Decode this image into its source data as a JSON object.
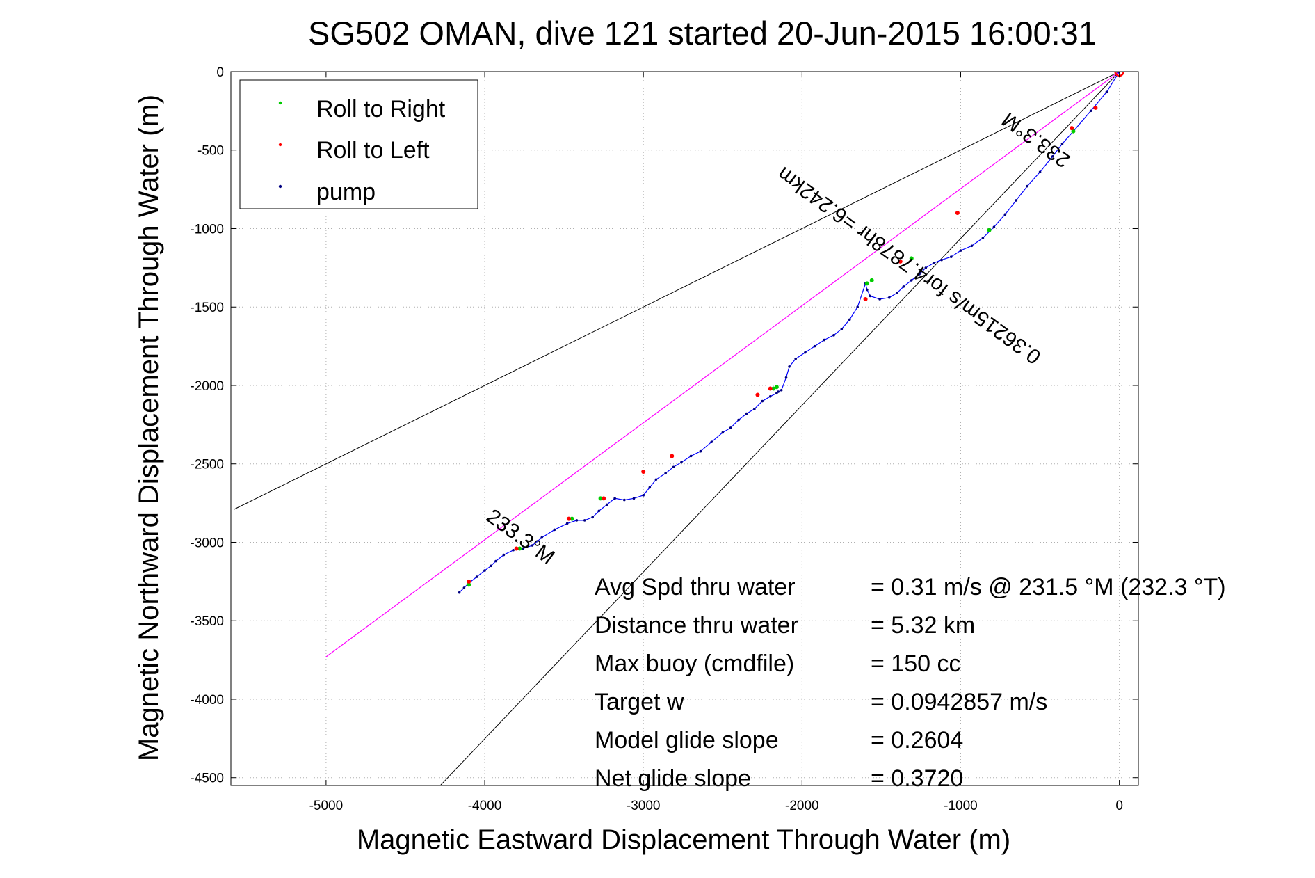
{
  "chart_data": {
    "type": "line",
    "title": "SG502 OMAN, dive 121 started 20-Jun-2015 16:00:31",
    "xlabel": "Magnetic Eastward Displacement Through Water (m)",
    "ylabel": "Magnetic Northward Displacement Through Water (m)",
    "xlim": [
      -5600,
      120
    ],
    "ylim": [
      -4550,
      0
    ],
    "xticks": [
      -5000,
      -4000,
      -3000,
      -2000,
      -1000,
      0
    ],
    "yticks": [
      0,
      -500,
      -1000,
      -1500,
      -2000,
      -2500,
      -3000,
      -3500,
      -4000,
      -4500
    ],
    "grid": true,
    "legend": {
      "placement": "top-left",
      "entries": [
        {
          "label": "Roll to Right",
          "color": "#00cc00"
        },
        {
          "label": "Roll to Left",
          "color": "#ff0000"
        },
        {
          "label": "pump",
          "color": "#000080"
        }
      ]
    },
    "track": {
      "color": "#0000ff",
      "x": [
        0,
        -80,
        -180,
        -290,
        -360,
        -420,
        -500,
        -580,
        -650,
        -720,
        -790,
        -860,
        -930,
        -1000,
        -1060,
        -1120,
        -1170,
        -1220,
        -1260,
        -1310,
        -1360,
        -1400,
        -1450,
        -1510,
        -1570,
        -1590,
        -1600,
        -1650,
        -1700,
        -1750,
        -1800,
        -1860,
        -1920,
        -1980,
        -2040,
        -2080,
        -2100,
        -2130,
        -2150,
        -2160,
        -2200,
        -2250,
        -2300,
        -2350,
        -2400,
        -2450,
        -2500,
        -2570,
        -2640,
        -2700,
        -2760,
        -2810,
        -2860,
        -2920,
        -2960,
        -3000,
        -3060,
        -3120,
        -3180,
        -3230,
        -3280,
        -3320,
        -3370,
        -3420,
        -3480,
        -3560,
        -3640,
        -3700,
        -3760,
        -3820,
        -3880,
        -3930,
        -3960,
        -4000,
        -4050,
        -4100,
        -4130,
        -4160
      ],
      "y": [
        0,
        -130,
        -250,
        -380,
        -460,
        -540,
        -640,
        -730,
        -820,
        -910,
        -990,
        -1060,
        -1110,
        -1140,
        -1180,
        -1200,
        -1220,
        -1250,
        -1290,
        -1330,
        -1370,
        -1410,
        -1440,
        -1450,
        -1430,
        -1390,
        -1350,
        -1500,
        -1580,
        -1640,
        -1680,
        -1710,
        -1750,
        -1790,
        -1830,
        -1880,
        -1950,
        -2030,
        -2040,
        -2050,
        -2070,
        -2100,
        -2150,
        -2180,
        -2220,
        -2270,
        -2300,
        -2360,
        -2420,
        -2450,
        -2490,
        -2520,
        -2560,
        -2600,
        -2650,
        -2700,
        -2720,
        -2730,
        -2720,
        -2760,
        -2800,
        -2840,
        -2860,
        -2860,
        -2880,
        -2920,
        -2970,
        -3020,
        -3040,
        -3050,
        -3080,
        -3120,
        -3150,
        -3180,
        -3220,
        -3260,
        -3290,
        -3320
      ]
    },
    "roll_right_points": {
      "x": [
        -1560,
        -1590,
        -1310,
        -2160,
        -2180,
        -3270,
        -3450,
        -3780,
        -4100,
        -290,
        -820
      ],
      "y": [
        -1330,
        -1350,
        -1190,
        -2010,
        -2020,
        -2720,
        -2850,
        -3040,
        -3270,
        -380,
        -1010
      ]
    },
    "roll_left_points": {
      "x": [
        -150,
        -300,
        -1020,
        -1380,
        -1600,
        -2200,
        -2280,
        -2820,
        -3000,
        -3250,
        -3470,
        -3800,
        -4100
      ],
      "y": [
        -230,
        -360,
        -900,
        -1210,
        -1450,
        -2020,
        -2060,
        -2450,
        -2550,
        -2720,
        -2850,
        -3040,
        -3250
      ],
      "start_marker_x": 0,
      "start_marker_y": 0
    },
    "reference_lines": {
      "color": "#000000",
      "lines": [
        {
          "x": [
            0,
            -5580
          ],
          "y": [
            0,
            -2790
          ]
        },
        {
          "x": [
            0,
            -4280
          ],
          "y": [
            0,
            -4550
          ]
        }
      ]
    },
    "heading_line": {
      "color": "#ff00ff",
      "x": [
        0,
        -5000
      ],
      "y": [
        0,
        -3730
      ]
    },
    "annotations": [
      {
        "text": "233.3°M",
        "x": -3800,
        "y": -3000,
        "rotation_deg": 36
      },
      {
        "text": "233.3°M",
        "x": -500,
        "y": -400,
        "rotation_deg": 216
      },
      {
        "text": "0.36215m/s for4.7878hr =6.242km",
        "x": -1300,
        "y": -1200,
        "rotation_deg": 216
      }
    ],
    "stats": [
      {
        "label": "Avg Spd thru water",
        "value": "=  0.31 m/s @ 231.5 °M (232.3 °T)"
      },
      {
        "label": "Distance thru water",
        "value": "=  5.32 km"
      },
      {
        "label": "Max buoy (cmdfile)",
        "value": "= 150 cc"
      },
      {
        "label": "Target w",
        "value": "= 0.0942857 m/s"
      },
      {
        "label": "Model glide slope",
        "value": "= 0.2604"
      },
      {
        "label": "Net glide slope",
        "value": "= 0.3720"
      }
    ]
  }
}
